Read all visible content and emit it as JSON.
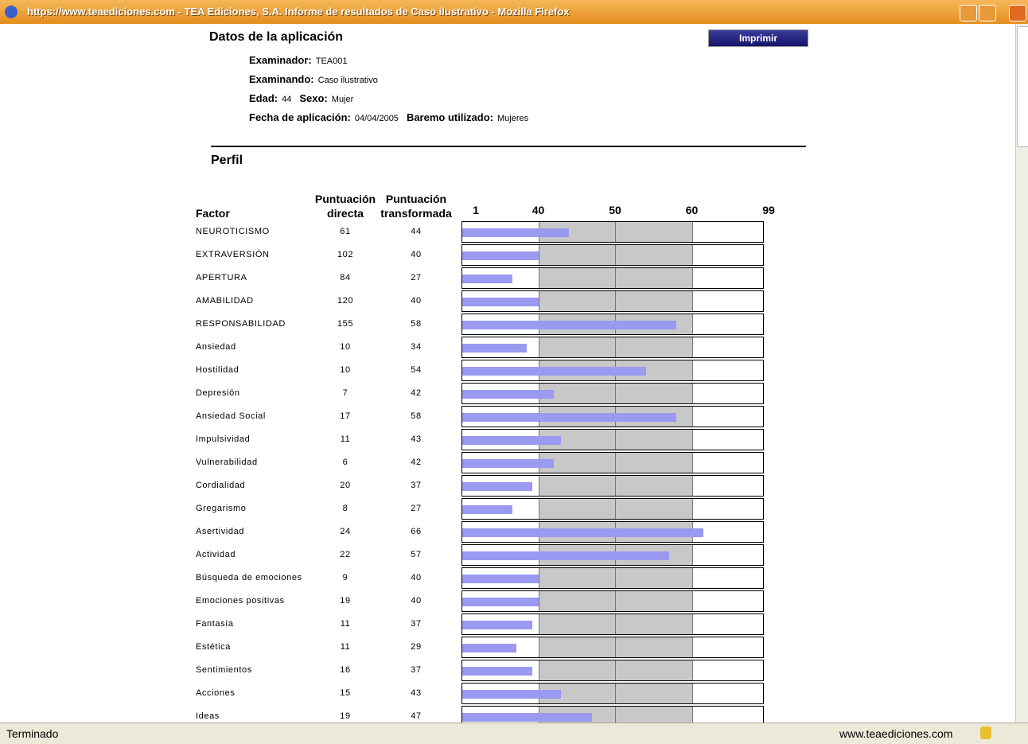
{
  "window": {
    "title": "https://www.teaediciones.com - TEA Ediciones, S.A. Informe de resultados de Caso ilustrativo - Mozilla Firefox",
    "status": "Terminado",
    "status_url": "www.teaediciones.com"
  },
  "report": {
    "section_title": "Datos de la aplicación",
    "print_button": "Imprimir",
    "lines": [
      [
        {
          "label": "Examinador:",
          "value": "TEA001"
        }
      ],
      [
        {
          "label": "Examinando:",
          "value": "Caso ilustrativo"
        }
      ],
      [
        {
          "label": "Edad:",
          "value": "44"
        },
        {
          "label": "Sexo:",
          "value": "Mujer"
        }
      ],
      [
        {
          "label": "Fecha de aplicación:",
          "value": "04/04/2005"
        },
        {
          "label": "Baremo utilizado:",
          "value": "Mujeres"
        }
      ]
    ]
  },
  "profile": {
    "title": "Perfil",
    "headers": {
      "factor": "Factor",
      "direct": [
        "Puntuación",
        "directa"
      ],
      "transformed": [
        "Puntuación",
        "transformada"
      ]
    },
    "scale_ticks": [
      1,
      40,
      50,
      60,
      99
    ],
    "bar_color": "#9a9af0",
    "rows": [
      {
        "factor": "NEUROTICISMO",
        "direct": "61",
        "transformed": 44
      },
      {
        "factor": "EXTRAVERSIÓN",
        "direct": "102",
        "transformed": 40
      },
      {
        "factor": "APERTURA",
        "direct": "84",
        "transformed": 27
      },
      {
        "factor": "AMABILIDAD",
        "direct": "120",
        "transformed": 40
      },
      {
        "factor": "RESPONSABILIDAD",
        "direct": "155",
        "transformed": 58
      },
      {
        "factor": "Ansiedad",
        "direct": "10",
        "transformed": 34
      },
      {
        "factor": "Hostilidad",
        "direct": "10",
        "transformed": 54
      },
      {
        "factor": "Depresión",
        "direct": "7",
        "transformed": 42
      },
      {
        "factor": "Ansiedad Social",
        "direct": "17",
        "transformed": 58
      },
      {
        "factor": "Impulsividad",
        "direct": "11",
        "transformed": 43
      },
      {
        "factor": "Vulnerabilidad",
        "direct": "6",
        "transformed": 42
      },
      {
        "factor": "Cordialidad",
        "direct": "20",
        "transformed": 37
      },
      {
        "factor": "Gregarismo",
        "direct": "8",
        "transformed": 27
      },
      {
        "factor": "Asertividad",
        "direct": "24",
        "transformed": 66
      },
      {
        "factor": "Actividad",
        "direct": "22",
        "transformed": 57
      },
      {
        "factor": "Búsqueda de emociones",
        "direct": "9",
        "transformed": 40
      },
      {
        "factor": "Emociones positivas",
        "direct": "19",
        "transformed": 40
      },
      {
        "factor": "Fantasía",
        "direct": "11",
        "transformed": 37
      },
      {
        "factor": "Estética",
        "direct": "11",
        "transformed": 29
      },
      {
        "factor": "Sentimientos",
        "direct": "16",
        "transformed": 37
      },
      {
        "factor": "Acciones",
        "direct": "15",
        "transformed": 43
      },
      {
        "factor": "Ideas",
        "direct": "19",
        "transformed": 47
      }
    ]
  }
}
